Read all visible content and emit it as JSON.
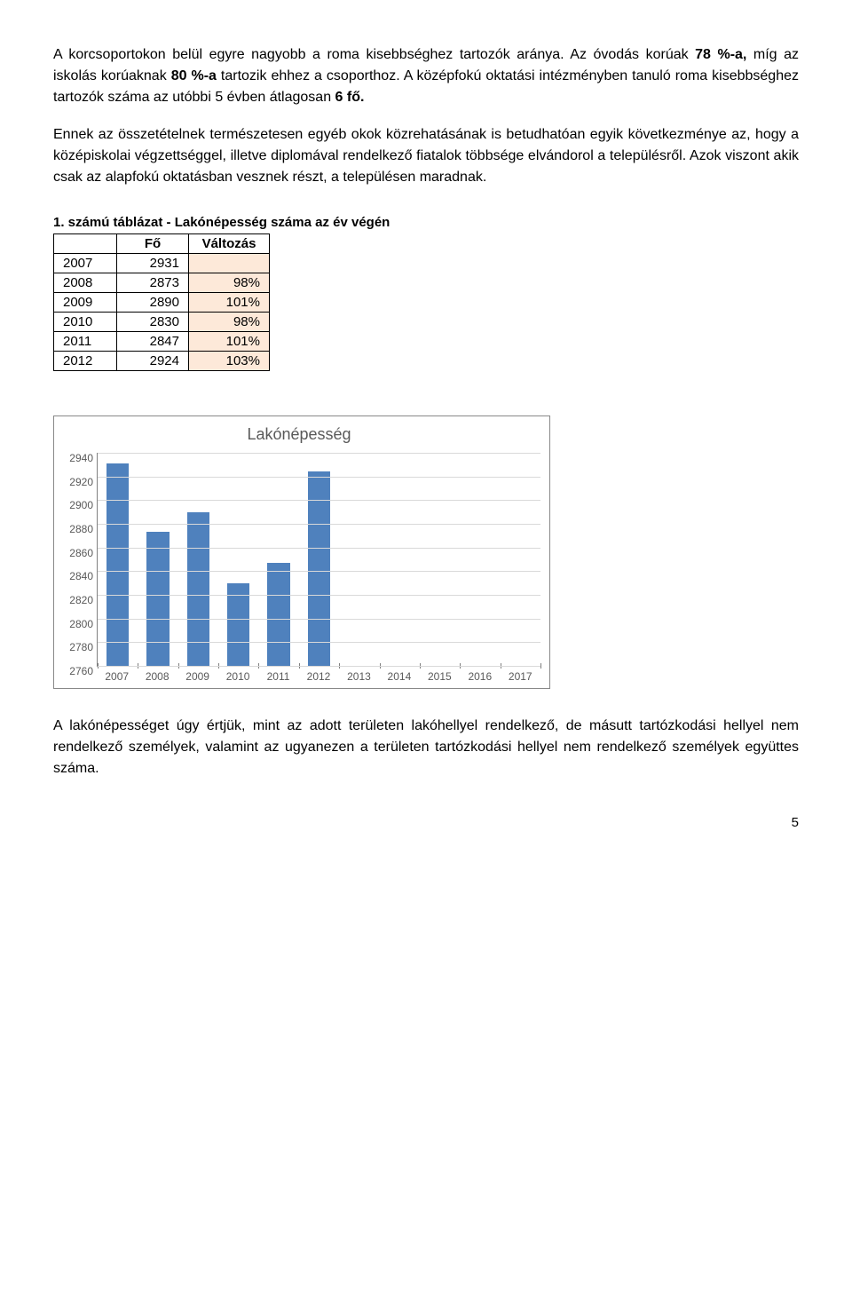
{
  "paragraphs": {
    "p1_a": "A korcsoportokon belül egyre nagyobb a roma kisebbséghez tartozók aránya. Az óvodás korúak ",
    "p1_b": "78 %-a,",
    "p1_c": " míg az iskolás korúaknak ",
    "p1_d": "80 %-a",
    "p1_e": " tartozik ehhez a csoporthoz. A középfokú oktatási intézményben tanuló roma kisebbséghez tartozók száma az utóbbi 5 évben átlagosan ",
    "p1_f": "6 fő.",
    "p2": "Ennek az összetételnek természetesen egyéb okok közrehatásának is betudhatóan egyik következménye az, hogy a középiskolai végzettséggel, illetve diplomával rendelkező fiatalok többsége elvándorol a településről. Azok viszont akik csak az alapfokú oktatásban vesznek részt, a településen maradnak.",
    "p3": "A lakónépességet úgy értjük, mint az adott területen lakóhellyel rendelkező, de másutt tartózkodási hellyel nem rendelkező személyek, valamint az ugyanezen a területen tartózkodási hellyel nem rendelkező személyek együttes száma."
  },
  "table": {
    "title": "1. számú táblázat - Lakónépesség száma az év végén",
    "col_fo": "Fő",
    "col_valt": "Változás",
    "pct_bg": "#fde9d9",
    "rows": [
      {
        "year": "2007",
        "fo": "2931",
        "pct": ""
      },
      {
        "year": "2008",
        "fo": "2873",
        "pct": "98%"
      },
      {
        "year": "2009",
        "fo": "2890",
        "pct": "101%"
      },
      {
        "year": "2010",
        "fo": "2830",
        "pct": "98%"
      },
      {
        "year": "2011",
        "fo": "2847",
        "pct": "101%"
      },
      {
        "year": "2012",
        "fo": "2924",
        "pct": "103%"
      }
    ]
  },
  "chart": {
    "title": "Lakónépesség",
    "title_color": "#595959",
    "border_color": "#888888",
    "bar_color": "#4f81bd",
    "grid_color": "#d9d9d9",
    "axis_line": "#808080",
    "axis_color": "#595959",
    "ymin": 2760,
    "ymax": 2940,
    "yticks": [
      "2940",
      "2920",
      "2900",
      "2880",
      "2860",
      "2840",
      "2820",
      "2800",
      "2780",
      "2760"
    ],
    "categories": [
      "2007",
      "2008",
      "2009",
      "2010",
      "2011",
      "2012",
      "2013",
      "2014",
      "2015",
      "2016",
      "2017"
    ],
    "values": [
      2931,
      2873,
      2890,
      2830,
      2847,
      2924,
      null,
      null,
      null,
      null,
      null
    ]
  },
  "page_number": "5"
}
